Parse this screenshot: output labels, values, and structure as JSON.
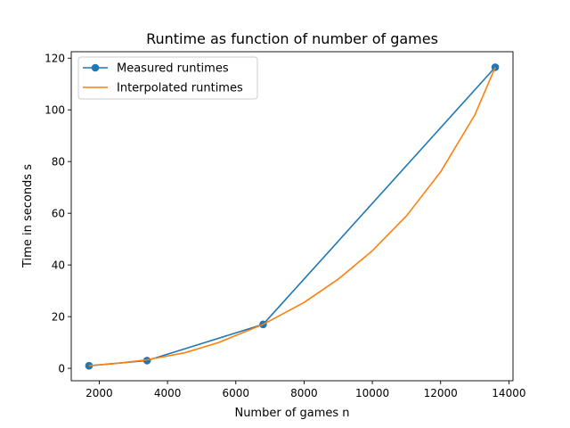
{
  "chart_data": {
    "type": "line",
    "title": "Runtime as function of number of games",
    "xlabel": "Number of games n",
    "ylabel": "Time in seconds s",
    "xlim": [
      1180,
      14120
    ],
    "ylim": [
      -4.8,
      122.5
    ],
    "xticks": [
      2000,
      4000,
      6000,
      8000,
      10000,
      12000,
      14000
    ],
    "yticks": [
      0,
      20,
      40,
      60,
      80,
      100,
      120
    ],
    "grid": false,
    "legend_position": "top-left",
    "series": [
      {
        "name": "Measured runtimes",
        "color": "#1f77b4",
        "marker": "circle",
        "x": [
          1700,
          3400,
          6800,
          13600
        ],
        "y": [
          1.0,
          3.0,
          17.0,
          116.5
        ]
      },
      {
        "name": "Interpolated runtimes",
        "color": "#ff7f0e",
        "marker": "none",
        "x": [
          1700,
          2500,
          3400,
          4500,
          5500,
          6800,
          8000,
          9000,
          10000,
          11000,
          12000,
          13000,
          13600
        ],
        "y": [
          1.0,
          1.9,
          3.3,
          6.0,
          10.0,
          17.0,
          25.5,
          34.5,
          45.5,
          59.0,
          76.0,
          98.0,
          116.5
        ]
      }
    ]
  }
}
